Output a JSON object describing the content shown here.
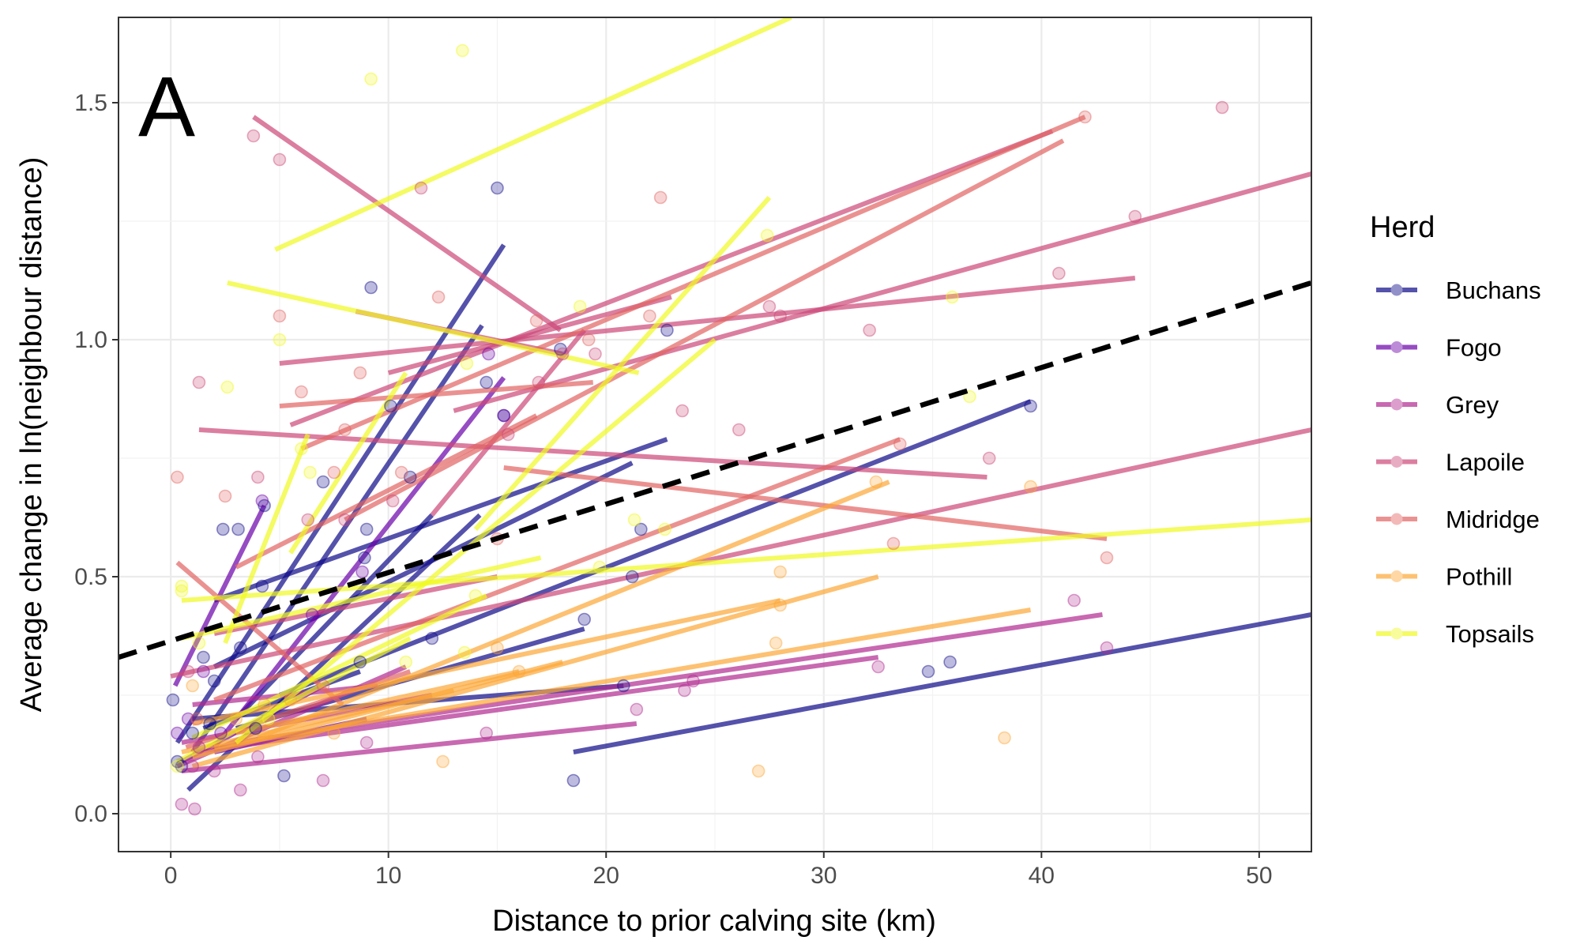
{
  "chart_data": {
    "type": "scatter",
    "panel_label": "A",
    "xlabel": "Distance to prior calving site (km)",
    "ylabel": "Average change in ln(neighbour distance)",
    "xlim": [
      -2.4,
      52.4
    ],
    "ylim": [
      -0.08,
      1.68
    ],
    "x_ticks": [
      0,
      10,
      20,
      30,
      40,
      50
    ],
    "y_ticks": [
      0.0,
      0.5,
      1.0,
      1.5
    ],
    "y_tick_labels": [
      "0.0",
      "0.5",
      "1.0",
      "1.5"
    ],
    "grid": true,
    "legend": {
      "title": "Herd",
      "position": "right"
    },
    "overall_trend": {
      "style": "dashed",
      "color": "#000000",
      "x": [
        -2.4,
        52.4
      ],
      "y": [
        0.33,
        1.12
      ]
    },
    "series": [
      {
        "name": "Buchans",
        "color": "#0D0887",
        "points": [
          [
            0.1,
            0.24
          ],
          [
            0.3,
            0.11
          ],
          [
            0.5,
            0.1
          ],
          [
            1.0,
            0.17
          ],
          [
            1.5,
            0.33
          ],
          [
            2.0,
            0.28
          ],
          [
            2.4,
            0.6
          ],
          [
            3.1,
            0.6
          ],
          [
            3.2,
            0.35
          ],
          [
            4.2,
            0.48
          ],
          [
            4.3,
            0.65
          ],
          [
            5.2,
            0.08
          ],
          [
            7.0,
            0.7
          ],
          [
            8.7,
            0.32
          ],
          [
            8.9,
            0.54
          ],
          [
            9.0,
            0.6
          ],
          [
            9.2,
            1.11
          ],
          [
            10.1,
            0.86
          ],
          [
            11.0,
            0.71
          ],
          [
            12.0,
            0.37
          ],
          [
            14.5,
            0.91
          ],
          [
            15.0,
            1.32
          ],
          [
            15.3,
            0.84
          ],
          [
            17.9,
            0.98
          ],
          [
            18.5,
            0.07
          ],
          [
            19.0,
            0.41
          ],
          [
            20.8,
            0.27
          ],
          [
            21.2,
            0.5
          ],
          [
            21.6,
            0.6
          ],
          [
            22.8,
            1.02
          ],
          [
            34.8,
            0.3
          ],
          [
            35.8,
            0.32
          ],
          [
            39.5,
            0.86
          ],
          [
            1.8,
            0.19
          ],
          [
            3.9,
            0.18
          ]
        ],
        "lines": [
          [
            [
              0.3,
              0.15
            ],
            [
              15.3,
              1.2
            ]
          ],
          [
            [
              0.8,
              0.05
            ],
            [
              14.2,
              0.63
            ]
          ],
          [
            [
              1.0,
              0.13
            ],
            [
              14.3,
              1.03
            ]
          ],
          [
            [
              2.0,
              0.45
            ],
            [
              22.8,
              0.79
            ]
          ],
          [
            [
              2.0,
              0.31
            ],
            [
              21.2,
              0.74
            ]
          ],
          [
            [
              3.0,
              0.2
            ],
            [
              12.0,
              0.63
            ]
          ],
          [
            [
              3.0,
              0.18
            ],
            [
              19.0,
              0.39
            ]
          ],
          [
            [
              1.5,
              0.18
            ],
            [
              8.7,
              0.3
            ]
          ],
          [
            [
              1.0,
              0.2
            ],
            [
              20.8,
              0.27
            ]
          ],
          [
            [
              5.0,
              0.25
            ],
            [
              39.5,
              0.87
            ]
          ],
          [
            [
              18.5,
              0.13
            ],
            [
              52.4,
              0.42
            ]
          ]
        ]
      },
      {
        "name": "Fogo",
        "color": "#6A00A8",
        "points": [
          [
            0.3,
            0.17
          ],
          [
            1.5,
            0.3
          ],
          [
            2.3,
            0.17
          ],
          [
            4.2,
            0.66
          ],
          [
            6.5,
            0.42
          ],
          [
            8.8,
            0.51
          ],
          [
            14.6,
            0.97
          ],
          [
            15.3,
            0.84
          ],
          [
            0.8,
            0.2
          ]
        ],
        "lines": [
          [
            [
              0.2,
              0.27
            ],
            [
              4.3,
              0.65
            ]
          ],
          [
            [
              2.0,
              0.14
            ],
            [
              15.3,
              0.92
            ]
          ],
          [
            [
              0.5,
              0.11
            ],
            [
              7.0,
              0.27
            ]
          ],
          [
            [
              2.0,
              0.13
            ],
            [
              9.0,
              0.2
            ]
          ]
        ]
      },
      {
        "name": "Grey",
        "color": "#B12A90",
        "points": [
          [
            0.5,
            0.02
          ],
          [
            1.1,
            0.01
          ],
          [
            1.0,
            0.1
          ],
          [
            3.2,
            0.05
          ],
          [
            7.0,
            0.07
          ],
          [
            14.5,
            0.17
          ],
          [
            21.4,
            0.22
          ],
          [
            23.6,
            0.26
          ],
          [
            24.0,
            0.28
          ],
          [
            32.5,
            0.31
          ],
          [
            41.5,
            0.45
          ],
          [
            43.0,
            0.35
          ],
          [
            2.0,
            0.09
          ],
          [
            1.3,
            0.14
          ],
          [
            4.0,
            0.12
          ],
          [
            9.0,
            0.15
          ]
        ],
        "lines": [
          [
            [
              0.3,
              0.1
            ],
            [
              10.8,
              0.31
            ]
          ],
          [
            [
              0.5,
              0.09
            ],
            [
              21.4,
              0.19
            ]
          ],
          [
            [
              1.0,
              0.13
            ],
            [
              32.5,
              0.33
            ]
          ],
          [
            [
              3.0,
              0.15
            ],
            [
              42.8,
              0.42
            ]
          ],
          [
            [
              1.0,
              0.23
            ],
            [
              9.5,
              0.27
            ]
          ],
          [
            [
              0.5,
              0.15
            ],
            [
              12.0,
              0.25
            ]
          ]
        ]
      },
      {
        "name": "Lapoile",
        "color": "#CC4778",
        "points": [
          [
            1.3,
            0.91
          ],
          [
            3.8,
            1.43
          ],
          [
            5.0,
            1.38
          ],
          [
            4.0,
            0.71
          ],
          [
            6.3,
            0.62
          ],
          [
            10.2,
            0.66
          ],
          [
            11.5,
            1.32
          ],
          [
            16.9,
            0.91
          ],
          [
            18.0,
            0.97
          ],
          [
            19.5,
            0.97
          ],
          [
            23.5,
            0.85
          ],
          [
            26.1,
            0.81
          ],
          [
            27.5,
            1.07
          ],
          [
            28.0,
            1.05
          ],
          [
            32.1,
            1.02
          ],
          [
            37.6,
            0.75
          ],
          [
            40.8,
            1.14
          ],
          [
            44.3,
            1.26
          ],
          [
            48.3,
            1.49
          ],
          [
            8.0,
            0.62
          ],
          [
            15.5,
            0.8
          ],
          [
            0.8,
            0.3
          ]
        ],
        "lines": [
          [
            [
              3.8,
              1.47
            ],
            [
              17.9,
              1.02
            ]
          ],
          [
            [
              1.3,
              0.81
            ],
            [
              37.5,
              0.71
            ]
          ],
          [
            [
              5.0,
              0.95
            ],
            [
              44.3,
              1.13
            ]
          ],
          [
            [
              5.5,
              0.82
            ],
            [
              40.5,
              1.44
            ]
          ],
          [
            [
              8.5,
              1.06
            ],
            [
              18.0,
              0.97
            ]
          ],
          [
            [
              12.0,
              0.63
            ],
            [
              19.0,
              1.02
            ]
          ],
          [
            [
              10.0,
              0.93
            ],
            [
              23.0,
              1.09
            ]
          ],
          [
            [
              0.0,
              0.29
            ],
            [
              52.4,
              0.81
            ]
          ],
          [
            [
              13.0,
              0.85
            ],
            [
              52.4,
              1.35
            ]
          ],
          [
            [
              2.0,
              0.38
            ],
            [
              15.0,
              0.5
            ]
          ]
        ]
      },
      {
        "name": "Midridge",
        "color": "#E16462",
        "points": [
          [
            0.3,
            0.71
          ],
          [
            2.5,
            0.67
          ],
          [
            5.0,
            1.05
          ],
          [
            6.0,
            0.89
          ],
          [
            7.5,
            0.72
          ],
          [
            8.7,
            0.93
          ],
          [
            10.6,
            0.72
          ],
          [
            12.3,
            1.09
          ],
          [
            16.8,
            1.04
          ],
          [
            19.2,
            1.0
          ],
          [
            22.0,
            1.05
          ],
          [
            22.5,
            1.3
          ],
          [
            33.5,
            0.78
          ],
          [
            42.0,
            1.47
          ],
          [
            43.0,
            0.54
          ],
          [
            33.2,
            0.57
          ],
          [
            8.0,
            0.81
          ],
          [
            7.0,
            0.27
          ],
          [
            1.2,
            0.2
          ],
          [
            15.0,
            0.58
          ]
        ],
        "lines": [
          [
            [
              0.3,
              0.53
            ],
            [
              7.9,
              0.23
            ]
          ],
          [
            [
              5.0,
              0.86
            ],
            [
              19.4,
              0.91
            ]
          ],
          [
            [
              6.0,
              0.77
            ],
            [
              42.0,
              1.47
            ]
          ],
          [
            [
              15.3,
              0.73
            ],
            [
              43.0,
              0.58
            ]
          ],
          [
            [
              3.0,
              0.52
            ],
            [
              16.8,
              0.84
            ]
          ],
          [
            [
              8.0,
              0.62
            ],
            [
              41.0,
              1.42
            ]
          ],
          [
            [
              2.0,
              0.24
            ],
            [
              33.5,
              0.79
            ]
          ],
          [
            [
              0.7,
              0.14
            ],
            [
              11.0,
              0.3
            ]
          ]
        ]
      },
      {
        "name": "Pothill",
        "color": "#FCA636",
        "points": [
          [
            1.0,
            0.27
          ],
          [
            3.0,
            0.2
          ],
          [
            5.5,
            0.24
          ],
          [
            7.5,
            0.17
          ],
          [
            12.5,
            0.11
          ],
          [
            15.0,
            0.35
          ],
          [
            27.0,
            0.09
          ],
          [
            27.8,
            0.36
          ],
          [
            28.0,
            0.51
          ],
          [
            28.0,
            0.44
          ],
          [
            32.4,
            0.7
          ],
          [
            38.3,
            0.16
          ],
          [
            39.5,
            0.69
          ],
          [
            4.3,
            0.23
          ],
          [
            16.0,
            0.3
          ]
        ],
        "lines": [
          [
            [
              1.0,
              0.1
            ],
            [
              32.5,
              0.5
            ]
          ],
          [
            [
              1.0,
              0.19
            ],
            [
              28.0,
              0.45
            ]
          ],
          [
            [
              2.0,
              0.14
            ],
            [
              39.5,
              0.43
            ]
          ],
          [
            [
              4.0,
              0.16
            ],
            [
              33.0,
              0.7
            ]
          ],
          [
            [
              1.0,
              0.12
            ],
            [
              18.0,
              0.32
            ]
          ],
          [
            [
              3.0,
              0.17
            ],
            [
              16.0,
              0.3
            ]
          ],
          [
            [
              0.5,
              0.13
            ],
            [
              13.0,
              0.26
            ]
          ]
        ]
      },
      {
        "name": "Topsails",
        "color": "#F0F921",
        "points": [
          [
            0.3,
            0.1
          ],
          [
            0.5,
            0.48
          ],
          [
            0.5,
            0.47
          ],
          [
            2.6,
            0.9
          ],
          [
            5.0,
            1.0
          ],
          [
            6.0,
            0.77
          ],
          [
            6.4,
            0.72
          ],
          [
            9.2,
            1.55
          ],
          [
            13.4,
            1.61
          ],
          [
            13.6,
            0.95
          ],
          [
            18.8,
            1.07
          ],
          [
            19.7,
            0.52
          ],
          [
            21.3,
            0.62
          ],
          [
            22.7,
            0.6
          ],
          [
            27.4,
            1.22
          ],
          [
            35.9,
            1.09
          ],
          [
            36.7,
            0.88
          ],
          [
            13.5,
            0.34
          ],
          [
            10.8,
            0.32
          ],
          [
            14.0,
            0.46
          ],
          [
            1.3,
            0.36
          ],
          [
            4.5,
            0.2
          ]
        ],
        "lines": [
          [
            [
              4.8,
              1.19
            ],
            [
              28.5,
              1.68
            ]
          ],
          [
            [
              2.6,
              1.12
            ],
            [
              21.5,
              0.93
            ]
          ],
          [
            [
              5.5,
              0.55
            ],
            [
              10.8,
              0.93
            ]
          ],
          [
            [
              14.0,
              0.6
            ],
            [
              27.5,
              1.3
            ]
          ],
          [
            [
              3.0,
              0.15
            ],
            [
              25.0,
              1.0
            ]
          ],
          [
            [
              0.5,
              0.45
            ],
            [
              52.4,
              0.62
            ]
          ],
          [
            [
              0.5,
              0.37
            ],
            [
              17.0,
              0.54
            ]
          ],
          [
            [
              1.0,
              0.16
            ],
            [
              14.5,
              0.46
            ]
          ],
          [
            [
              0.3,
              0.11
            ],
            [
              11.0,
              0.37
            ]
          ],
          [
            [
              2.5,
              0.36
            ],
            [
              6.3,
              0.8
            ]
          ]
        ]
      }
    ]
  }
}
